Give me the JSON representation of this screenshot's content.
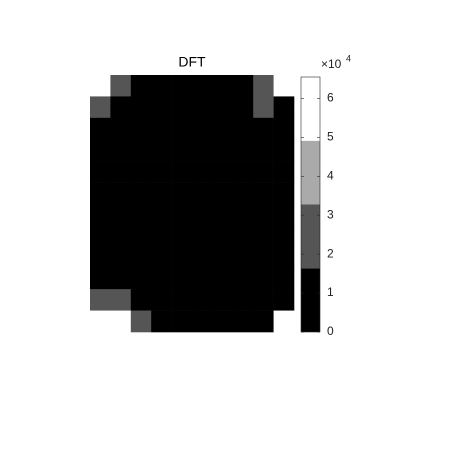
{
  "chart_data": {
    "type": "image",
    "title": "DFT",
    "colormap": [
      "#000000",
      "#555555",
      "#aaaaaa",
      "#ffffff"
    ],
    "clim": [
      0,
      6.55
    ],
    "cticks": [
      0,
      1,
      2,
      3,
      4,
      5,
      6
    ],
    "multiplier": "×10",
    "multiplier_exponent": "4",
    "z": [
      [
        6.5,
        3,
        0.5,
        0,
        0,
        0,
        0,
        1,
        3,
        5
      ],
      [
        3,
        1,
        0,
        0,
        0,
        0,
        0,
        0,
        2,
        1
      ],
      [
        1,
        0,
        0,
        0,
        0,
        0,
        0,
        0,
        0,
        0.5
      ],
      [
        0,
        0,
        0,
        0,
        0,
        0,
        0,
        0,
        0,
        0
      ],
      [
        0,
        0,
        0,
        0,
        0,
        0,
        0,
        0,
        0,
        0
      ],
      [
        0,
        0,
        0,
        0,
        0,
        0,
        0,
        0,
        0,
        0
      ],
      [
        0,
        0,
        0,
        0,
        0,
        0,
        0,
        0,
        0,
        0
      ],
      [
        0,
        0,
        0,
        0,
        0,
        0,
        0,
        0,
        0,
        0
      ],
      [
        0,
        0,
        0,
        0,
        0,
        0,
        0,
        0,
        0,
        0
      ],
      [
        0.5,
        0,
        0,
        0,
        0,
        0,
        0,
        0,
        0,
        0
      ],
      [
        2,
        3,
        1,
        0,
        0,
        0,
        0,
        0,
        0,
        1
      ],
      [
        6.5,
        5,
        2,
        0.5,
        0,
        0,
        0,
        0,
        1,
        6.5
      ]
    ]
  }
}
